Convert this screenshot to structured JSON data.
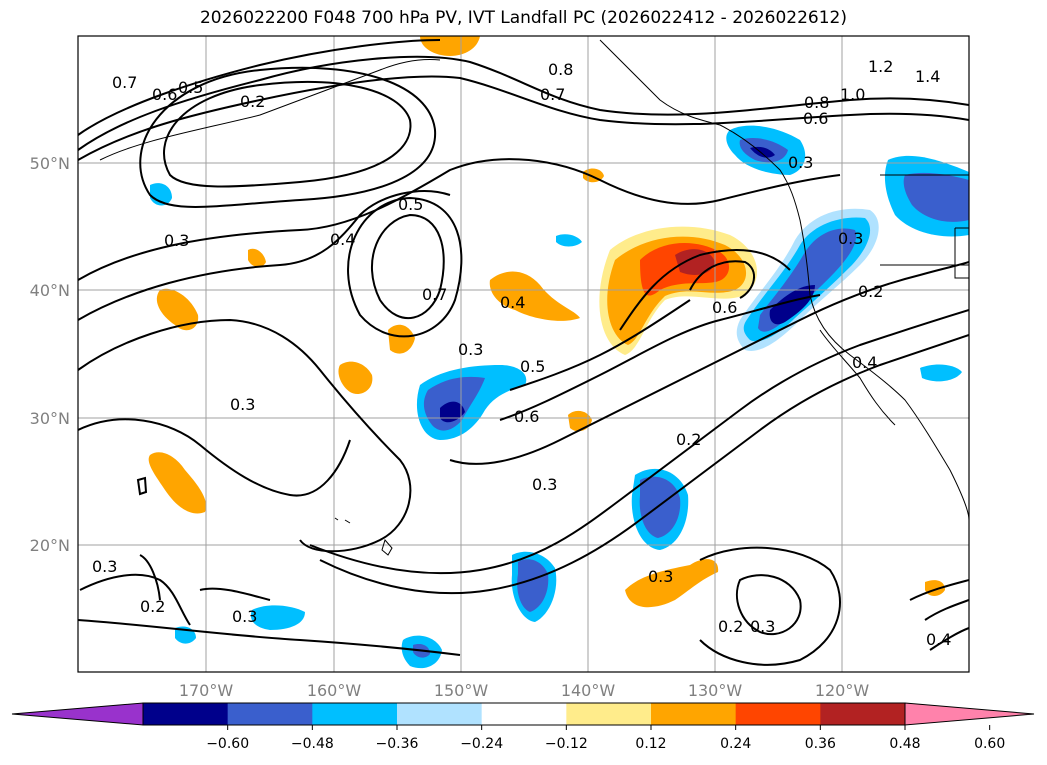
{
  "title": "2026022200 F048 700 hPa PV, IVT Landfall PC (2026022412 - 2026022612)",
  "map": {
    "lat_ticks": [
      {
        "value": 50,
        "label": "50°N"
      },
      {
        "value": 40,
        "label": "40°N"
      },
      {
        "value": 30,
        "label": "30°N"
      },
      {
        "value": 20,
        "label": "20°N"
      }
    ],
    "lon_ticks": [
      {
        "value": -170,
        "label": "170°W"
      },
      {
        "value": -160,
        "label": "160°W"
      },
      {
        "value": -150,
        "label": "150°W"
      },
      {
        "value": -140,
        "label": "140°W"
      },
      {
        "value": -130,
        "label": "130°W"
      },
      {
        "value": -120,
        "label": "120°W"
      }
    ],
    "extent": {
      "lon_min": -180,
      "lon_max": -110,
      "lat_min": 10,
      "lat_max": 60
    },
    "contour_labels": [
      "0.7",
      "0.6",
      "0.5",
      "0.2",
      "0.3",
      "0.4",
      "0.5",
      "0.8",
      "0.7",
      "0.8",
      "0.6",
      "1.0",
      "1.4",
      "1.2",
      "0.3",
      "0.4",
      "0.3",
      "0.7",
      "0.3",
      "0.5",
      "0.6",
      "0.6",
      "0.3",
      "0.2",
      "0.4",
      "0.3",
      "0.2",
      "0.3",
      "0.2",
      "0.3",
      "0.3",
      "0.2",
      "0.3",
      "0.4"
    ]
  },
  "colorbar": {
    "colors": [
      "#9932cc",
      "#00008b",
      "#3a5fcd",
      "#00bfff",
      "#b0e2ff",
      "#ffffff",
      "#ffec8b",
      "#ffa500",
      "#ff4500",
      "#b22222",
      "#ff82ab"
    ],
    "tick_labels": [
      "−0.60",
      "−0.48",
      "−0.36",
      "−0.24",
      "−0.12",
      "0.12",
      "0.24",
      "0.36",
      "0.48",
      "0.60"
    ]
  }
}
